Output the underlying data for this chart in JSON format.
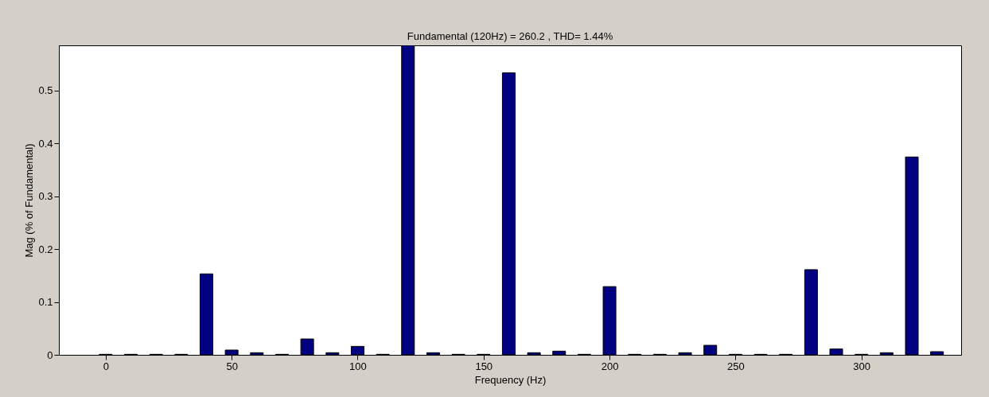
{
  "chart_data": {
    "type": "bar",
    "title": "Fundamental (120Hz) = 260.2 , THD= 1.44%",
    "xlabel": "Frequency (Hz)",
    "ylabel": "Mag (% of Fundamental)",
    "x": [
      0,
      10,
      20,
      30,
      40,
      50,
      60,
      70,
      80,
      90,
      100,
      110,
      120,
      130,
      140,
      150,
      160,
      170,
      180,
      190,
      200,
      210,
      220,
      230,
      240,
      250,
      260,
      270,
      280,
      290,
      300,
      310,
      320,
      330
    ],
    "series": [
      {
        "color": "#000080",
        "values": [
          0.001,
          0.001,
          0.001,
          0.001,
          0.153,
          0.009,
          0.004,
          0.001,
          0.03,
          0.004,
          0.016,
          0.001,
          0.585,
          0.004,
          0.001,
          0.001,
          0.533,
          0.004,
          0.007,
          0.001,
          0.129,
          0.001,
          0.001,
          0.004,
          0.018,
          0.001,
          0.001,
          0.001,
          0.161,
          0.011,
          0.001,
          0.004,
          0.374,
          0.006
        ]
      }
    ],
    "xlim": [
      -17,
      338
    ],
    "xticks": [
      0,
      50,
      100,
      150,
      200,
      250,
      300
    ],
    "ylim": [
      0,
      0.585
    ],
    "yticks": [
      0,
      0.1,
      0.2,
      0.3,
      0.4,
      0.5
    ],
    "grid": false
  }
}
